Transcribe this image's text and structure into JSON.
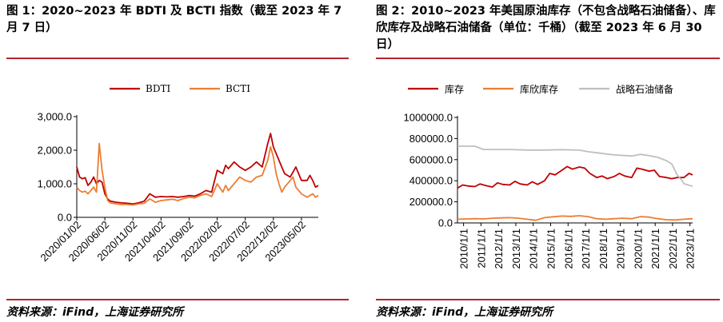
{
  "left": {
    "title": "图 1：2020~2023 年 BDTI 及 BCTI 指数（截至 2023 年 7 月 7 日）",
    "source": "资料来源：iFind，上海证券研究所"
  },
  "right": {
    "title": "图 2：2010~2023 年美国原油库存（不包含战略石油储备）、库欣库存及战略石油储备（单位：千桶）（截至 2023 年 6 月 30 日）",
    "source": "资料来源：iFind，上海证券研究所"
  },
  "colors": {
    "red": "#c00000",
    "orange": "#ed7d31",
    "gray": "#bfbfbf",
    "accent": "#b3262c"
  },
  "chart_data": [
    {
      "type": "line",
      "title": "2020~2023 年 BDTI 及 BCTI 指数",
      "x_tick_labels": [
        "2020/01/02",
        "2020/06/02",
        "2020/11/02",
        "2021/04/02",
        "2021/09/02",
        "2022/02/02",
        "2022/07/02",
        "2022/12/02",
        "2023/05/02"
      ],
      "y_tick_labels": [
        "0.0",
        "1,000.0",
        "2,000.0",
        "3,000.0"
      ],
      "ylim": [
        0,
        3000
      ],
      "x_range": [
        0,
        43
      ],
      "x_unit": "months since 2020/01",
      "series": [
        {
          "name": "BDTI",
          "color": "#c00000",
          "x": [
            0,
            0.5,
            1,
            1.5,
            2,
            2.5,
            3,
            3.5,
            4,
            4.5,
            5,
            5.5,
            6,
            7,
            8,
            9,
            10,
            11,
            12,
            13,
            14,
            15,
            16,
            17,
            18,
            19,
            20,
            21,
            22,
            23,
            24,
            25,
            26,
            26.5,
            27,
            28,
            29,
            30,
            31,
            32,
            33,
            34,
            34.5,
            35,
            35.5,
            36,
            36.5,
            37,
            38,
            38.5,
            39,
            40,
            41,
            41.5,
            42,
            42.5,
            43
          ],
          "y": [
            1500,
            1200,
            1150,
            1180,
            950,
            1050,
            1200,
            1000,
            1100,
            1050,
            700,
            550,
            480,
            450,
            430,
            420,
            400,
            430,
            480,
            700,
            600,
            620,
            610,
            620,
            600,
            620,
            650,
            630,
            700,
            800,
            750,
            1400,
            1300,
            1550,
            1450,
            1650,
            1500,
            1400,
            1500,
            1650,
            1500,
            2200,
            2500,
            2100,
            1900,
            1700,
            1500,
            1300,
            1200,
            1350,
            1500,
            1100,
            1100,
            1250,
            1100,
            900,
            950
          ],
          "smooth": false
        },
        {
          "name": "BCTI",
          "color": "#ed7d31",
          "x": [
            0,
            0.5,
            1,
            1.5,
            2,
            2.5,
            3,
            3.5,
            4,
            4.5,
            5,
            5.5,
            6,
            7,
            8,
            9,
            10,
            11,
            12,
            13,
            14,
            15,
            16,
            17,
            18,
            19,
            20,
            21,
            22,
            23,
            24,
            25,
            26,
            26.5,
            27,
            28,
            29,
            30,
            31,
            32,
            33,
            34,
            34.5,
            35,
            35.5,
            36,
            36.5,
            37,
            38,
            38.5,
            39,
            40,
            41,
            41.5,
            42,
            42.5,
            43
          ],
          "y": [
            900,
            800,
            750,
            780,
            700,
            800,
            900,
            750,
            2200,
            1400,
            900,
            500,
            430,
            400,
            380,
            380,
            370,
            400,
            420,
            550,
            450,
            500,
            520,
            540,
            500,
            560,
            600,
            580,
            650,
            700,
            620,
            1000,
            750,
            950,
            800,
            1000,
            1200,
            1100,
            1050,
            1200,
            1250,
            1700,
            2100,
            1800,
            1300,
            1000,
            750,
            900,
            1100,
            1200,
            900,
            700,
            600,
            650,
            700,
            600,
            650
          ]
        }
      ]
    },
    {
      "type": "line",
      "title": "2010~2023 年美国原油库存、库欣库存及战略石油储备",
      "x_tick_labels": [
        "2010/1/1",
        "2011/1/1",
        "2012/1/1",
        "2013/1/1",
        "2014/1/1",
        "2015/1/1",
        "2016/1/1",
        "2017/1/1",
        "2018/1/1",
        "2019/1/1",
        "2020/1/1",
        "2021/1/1",
        "2022/1/1",
        "2023/1/1"
      ],
      "y_tick_labels": [
        "0.0",
        "200000.0",
        "400000.0",
        "600000.0",
        "800000.0",
        "1000000.0"
      ],
      "ylim": [
        0,
        1000000
      ],
      "x_range": [
        2010.0,
        2023.5
      ],
      "unit": "千桶",
      "series": [
        {
          "name": "库存",
          "color": "#c00000",
          "x": [
            2010.0,
            2010.3,
            2010.6,
            2011.0,
            2011.3,
            2011.6,
            2012.0,
            2012.3,
            2012.6,
            2013.0,
            2013.3,
            2013.6,
            2014.0,
            2014.3,
            2014.6,
            2015.0,
            2015.3,
            2015.6,
            2016.0,
            2016.3,
            2016.6,
            2017.0,
            2017.3,
            2017.6,
            2018.0,
            2018.3,
            2018.6,
            2019.0,
            2019.3,
            2019.6,
            2020.0,
            2020.3,
            2020.6,
            2021.0,
            2021.3,
            2021.6,
            2022.0,
            2022.3,
            2022.6,
            2023.0,
            2023.3,
            2023.5
          ],
          "y": [
            330000,
            360000,
            350000,
            345000,
            370000,
            355000,
            340000,
            380000,
            365000,
            360000,
            395000,
            370000,
            360000,
            390000,
            365000,
            400000,
            470000,
            455000,
            500000,
            535000,
            510000,
            530000,
            520000,
            470000,
            430000,
            445000,
            420000,
            440000,
            470000,
            445000,
            430000,
            520000,
            510000,
            490000,
            500000,
            440000,
            430000,
            420000,
            430000,
            430000,
            470000,
            455000
          ]
        },
        {
          "name": "库欣库存",
          "color": "#ed7d31",
          "x": [
            2010.0,
            2010.5,
            2011.0,
            2011.5,
            2012.0,
            2012.5,
            2013.0,
            2013.5,
            2014.0,
            2014.5,
            2015.0,
            2015.5,
            2016.0,
            2016.5,
            2017.0,
            2017.5,
            2018.0,
            2018.5,
            2019.0,
            2019.5,
            2020.0,
            2020.5,
            2021.0,
            2021.5,
            2022.0,
            2022.5,
            2023.0,
            2023.5
          ],
          "y": [
            35000,
            38000,
            40000,
            38000,
            45000,
            48000,
            50000,
            45000,
            35000,
            25000,
            50000,
            58000,
            65000,
            62000,
            68000,
            60000,
            40000,
            35000,
            40000,
            45000,
            40000,
            60000,
            55000,
            40000,
            30000,
            28000,
            35000,
            40000
          ]
        },
        {
          "name": "战略石油储备",
          "color": "#bfbfbf",
          "x": [
            2010.0,
            2011.0,
            2011.5,
            2012.0,
            2013.0,
            2014.0,
            2015.0,
            2016.0,
            2017.0,
            2017.5,
            2018.0,
            2019.0,
            2020.0,
            2020.5,
            2021.0,
            2021.5,
            2022.0,
            2022.3,
            2022.6,
            2022.9,
            2023.0,
            2023.5
          ],
          "y": [
            727000,
            727000,
            696000,
            696000,
            696000,
            691000,
            691000,
            695000,
            690000,
            675000,
            665000,
            645000,
            635000,
            650000,
            638000,
            622000,
            590000,
            560000,
            460000,
            400000,
            372000,
            347000
          ]
        }
      ]
    }
  ]
}
